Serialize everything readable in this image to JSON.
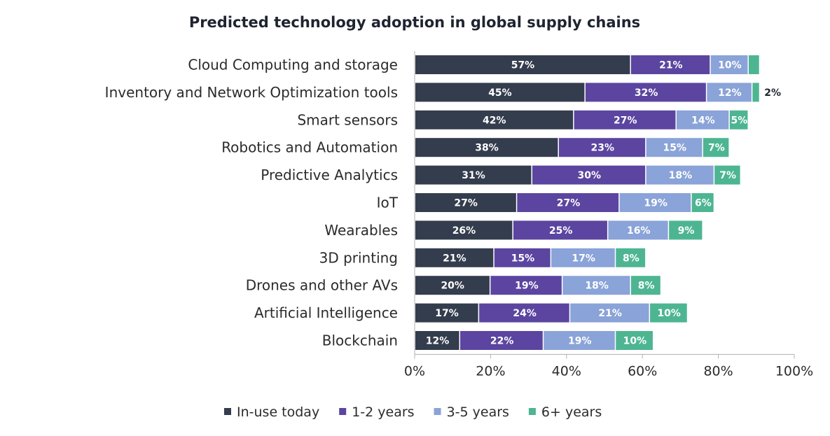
{
  "chart_data": {
    "type": "bar",
    "orientation": "horizontal",
    "stacked": true,
    "title": "Predicted technology adoption in global supply chains",
    "categories": [
      "Cloud Computing and storage",
      "Inventory and Network Optimization tools",
      "Smart sensors",
      "Robotics and Automation",
      "Predictive Analytics",
      "IoT",
      "Wearables",
      "3D printing",
      "Drones and other AVs",
      "Artificial Intelligence",
      "Blockchain"
    ],
    "series": [
      {
        "name": "In-use today",
        "color": "#343d4d",
        "values": [
          57,
          45,
          42,
          38,
          31,
          27,
          26,
          21,
          20,
          17,
          12
        ]
      },
      {
        "name": "1-2 years",
        "color": "#5b45a0",
        "values": [
          21,
          32,
          27,
          23,
          30,
          27,
          25,
          15,
          19,
          24,
          22
        ]
      },
      {
        "name": "3-5 years",
        "color": "#8aa3d8",
        "values": [
          10,
          12,
          14,
          15,
          18,
          19,
          16,
          17,
          18,
          21,
          19
        ]
      },
      {
        "name": "6+ years",
        "color": "#4db592",
        "values": [
          3,
          2,
          5,
          7,
          7,
          6,
          9,
          8,
          8,
          10,
          10
        ]
      }
    ],
    "value_suffix": "%",
    "xlim": [
      0,
      100
    ],
    "x_ticks": [
      "0%",
      "20%",
      "40%",
      "60%",
      "80%",
      "100%"
    ],
    "grid": false,
    "legend_position": "bottom"
  }
}
